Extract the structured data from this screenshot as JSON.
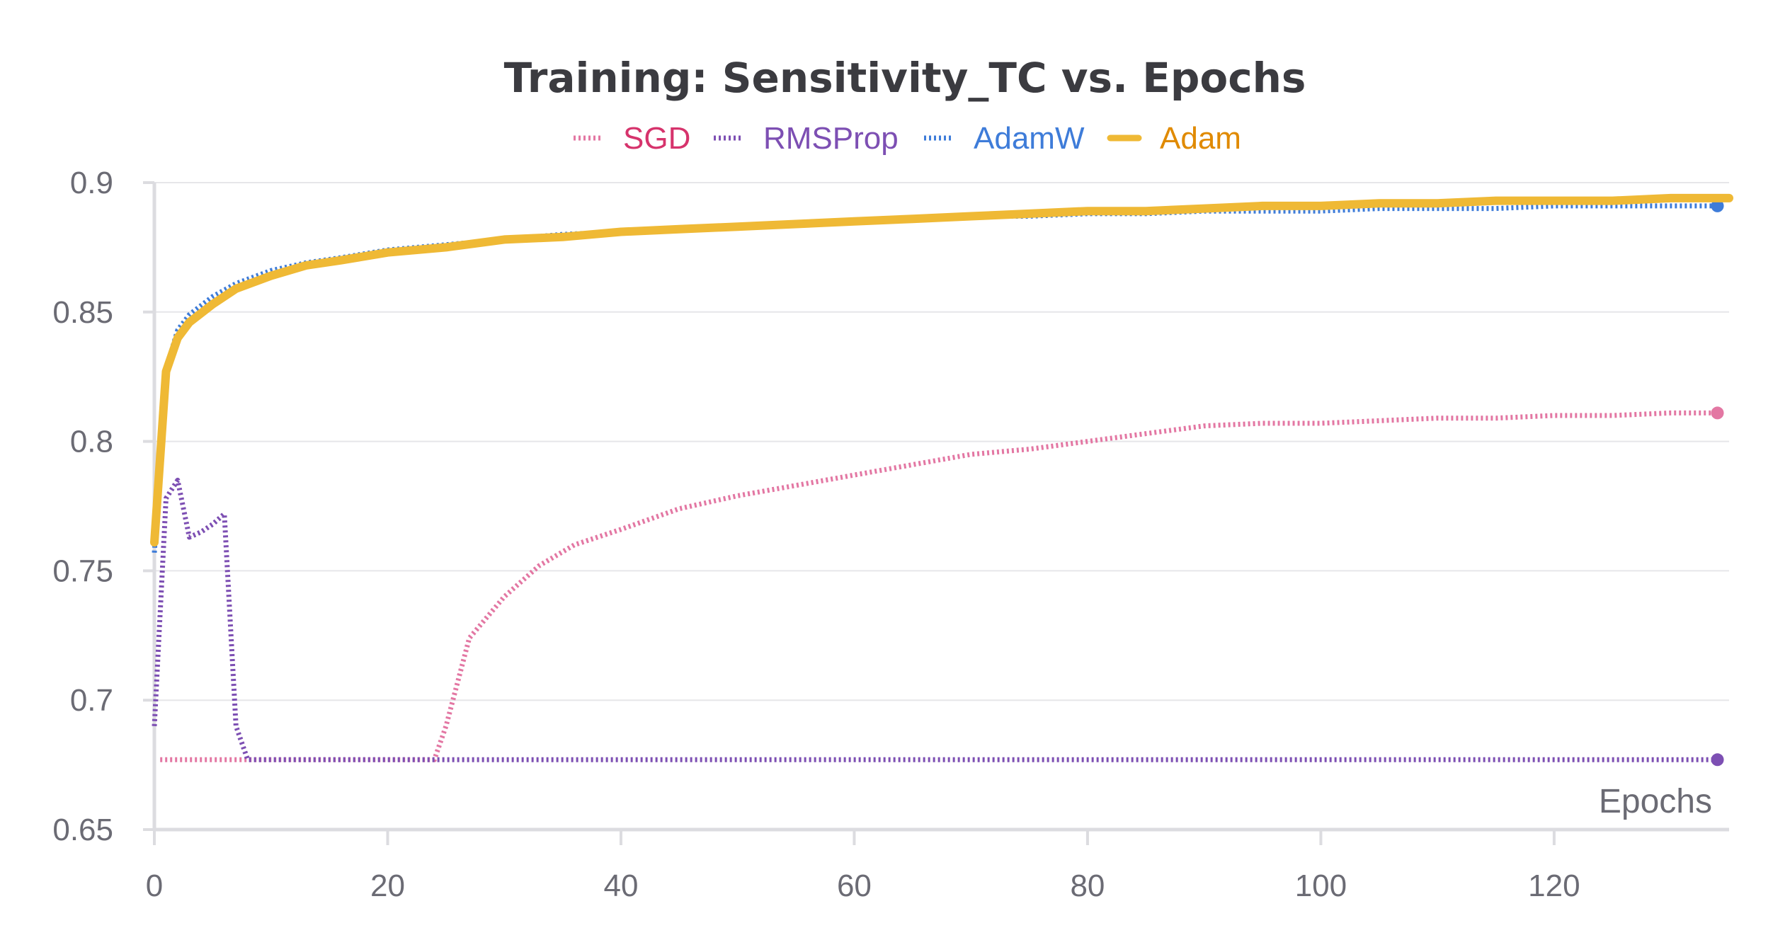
{
  "chart_data": {
    "type": "line",
    "title": "Training: Sensitivity_TC vs. Epochs",
    "xlabel": "Epochs",
    "ylabel": "",
    "xlim": [
      0,
      135
    ],
    "ylim": [
      0.65,
      0.9
    ],
    "x_ticks": [
      "0",
      "20",
      "40",
      "60",
      "80",
      "100",
      "120"
    ],
    "y_ticks": [
      "0.65",
      "0.7",
      "0.75",
      "0.8",
      "0.85",
      "0.9"
    ],
    "grid": true,
    "legend_position": "top-center",
    "series": [
      {
        "name": "SGD",
        "color": "#e377a3",
        "text_color": "#d6336c",
        "style": "dotted",
        "points": [
          [
            0.5,
            0.677
          ],
          [
            24,
            0.677
          ],
          [
            25,
            0.69
          ],
          [
            27,
            0.724
          ],
          [
            30,
            0.74
          ],
          [
            33,
            0.752
          ],
          [
            36,
            0.76
          ],
          [
            40,
            0.766
          ],
          [
            45,
            0.774
          ],
          [
            50,
            0.779
          ],
          [
            55,
            0.783
          ],
          [
            60,
            0.787
          ],
          [
            65,
            0.791
          ],
          [
            70,
            0.795
          ],
          [
            75,
            0.797
          ],
          [
            80,
            0.8
          ],
          [
            85,
            0.803
          ],
          [
            90,
            0.806
          ],
          [
            95,
            0.807
          ],
          [
            100,
            0.807
          ],
          [
            105,
            0.808
          ],
          [
            110,
            0.809
          ],
          [
            115,
            0.809
          ],
          [
            120,
            0.81
          ],
          [
            125,
            0.81
          ],
          [
            130,
            0.811
          ],
          [
            134,
            0.811
          ]
        ],
        "end_marker": true
      },
      {
        "name": "RMSProp",
        "color": "#7d4fb3",
        "text_color": "#7d4fb3",
        "style": "dotted",
        "points": [
          [
            0,
            0.69
          ],
          [
            1,
            0.778
          ],
          [
            2,
            0.785
          ],
          [
            3,
            0.763
          ],
          [
            4,
            0.765
          ],
          [
            5,
            0.768
          ],
          [
            6,
            0.772
          ],
          [
            7,
            0.69
          ],
          [
            8,
            0.677
          ],
          [
            20,
            0.677
          ],
          [
            40,
            0.677
          ],
          [
            60,
            0.677
          ],
          [
            80,
            0.677
          ],
          [
            100,
            0.677
          ],
          [
            120,
            0.677
          ],
          [
            134,
            0.677
          ]
        ],
        "end_marker": true
      },
      {
        "name": "AdamW",
        "color": "#3e7cd9",
        "text_color": "#3e7cd9",
        "style": "dotted",
        "points": [
          [
            0,
            0.757
          ],
          [
            1,
            0.828
          ],
          [
            2,
            0.843
          ],
          [
            3,
            0.849
          ],
          [
            5,
            0.856
          ],
          [
            7,
            0.861
          ],
          [
            10,
            0.866
          ],
          [
            13,
            0.869
          ],
          [
            16,
            0.871
          ],
          [
            20,
            0.874
          ],
          [
            25,
            0.876
          ],
          [
            30,
            0.878
          ],
          [
            35,
            0.88
          ],
          [
            40,
            0.881
          ],
          [
            45,
            0.882
          ],
          [
            50,
            0.883
          ],
          [
            55,
            0.884
          ],
          [
            60,
            0.885
          ],
          [
            65,
            0.886
          ],
          [
            70,
            0.887
          ],
          [
            75,
            0.887
          ],
          [
            80,
            0.888
          ],
          [
            85,
            0.888
          ],
          [
            90,
            0.889
          ],
          [
            95,
            0.889
          ],
          [
            100,
            0.889
          ],
          [
            105,
            0.89
          ],
          [
            110,
            0.89
          ],
          [
            115,
            0.89
          ],
          [
            120,
            0.891
          ],
          [
            125,
            0.891
          ],
          [
            130,
            0.891
          ],
          [
            134,
            0.891
          ]
        ],
        "end_marker": true
      },
      {
        "name": "Adam",
        "color": "#efb935",
        "text_color": "#e08a00",
        "style": "solid",
        "points": [
          [
            0,
            0.761
          ],
          [
            1,
            0.827
          ],
          [
            2,
            0.84
          ],
          [
            3,
            0.846
          ],
          [
            5,
            0.853
          ],
          [
            7,
            0.859
          ],
          [
            10,
            0.864
          ],
          [
            13,
            0.868
          ],
          [
            16,
            0.87
          ],
          [
            20,
            0.873
          ],
          [
            25,
            0.875
          ],
          [
            30,
            0.878
          ],
          [
            35,
            0.879
          ],
          [
            40,
            0.881
          ],
          [
            45,
            0.882
          ],
          [
            50,
            0.883
          ],
          [
            55,
            0.884
          ],
          [
            60,
            0.885
          ],
          [
            65,
            0.886
          ],
          [
            70,
            0.887
          ],
          [
            75,
            0.888
          ],
          [
            80,
            0.889
          ],
          [
            85,
            0.889
          ],
          [
            90,
            0.89
          ],
          [
            95,
            0.891
          ],
          [
            100,
            0.891
          ],
          [
            105,
            0.892
          ],
          [
            110,
            0.892
          ],
          [
            115,
            0.893
          ],
          [
            120,
            0.893
          ],
          [
            125,
            0.893
          ],
          [
            130,
            0.894
          ],
          [
            135,
            0.894
          ]
        ],
        "end_marker": false
      }
    ]
  }
}
